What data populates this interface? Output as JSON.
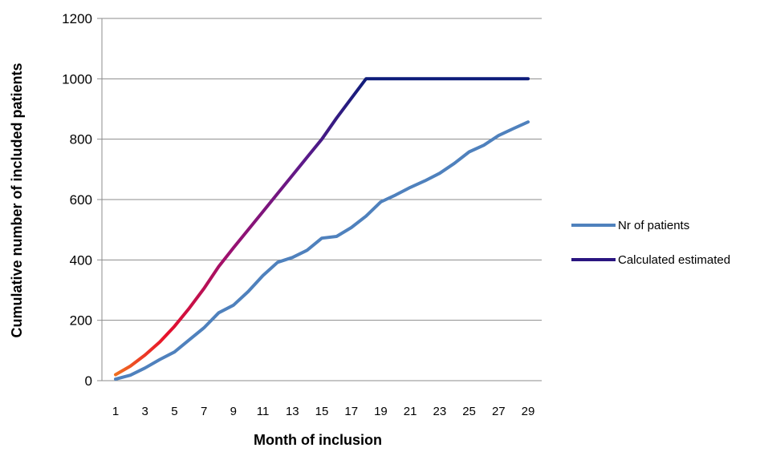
{
  "chart_data": {
    "type": "line",
    "xlabel": "Month of inclusion",
    "ylabel": "Cumulative number of included patients",
    "ylim": [
      0,
      1200
    ],
    "yticks": [
      0,
      200,
      400,
      600,
      800,
      1000,
      1200
    ],
    "xlim": [
      1,
      29
    ],
    "xticks": [
      1,
      3,
      5,
      7,
      9,
      11,
      13,
      15,
      17,
      19,
      21,
      23,
      25,
      27,
      29
    ],
    "grid": "horizontal",
    "legend_position": "right",
    "series": [
      {
        "name": "Nr of patients",
        "color": "#4F81BD",
        "x": [
          1,
          2,
          3,
          4,
          5,
          6,
          7,
          8,
          9,
          10,
          11,
          12,
          13,
          14,
          15,
          16,
          17,
          18,
          19,
          20,
          21,
          22,
          23,
          24,
          25,
          26,
          27,
          28,
          29
        ],
        "values": [
          5,
          18,
          42,
          70,
          95,
          135,
          175,
          225,
          250,
          295,
          348,
          392,
          408,
          432,
          472,
          478,
          507,
          545,
          592,
          615,
          640,
          662,
          687,
          720,
          758,
          780,
          812,
          835,
          857
        ]
      },
      {
        "name": "Calculated estimated",
        "color_gradient": [
          "#F07020",
          "#E8102A",
          "#9B1070",
          "#5C1A8A",
          "#0D1C7A"
        ],
        "x": [
          1,
          2,
          3,
          4,
          5,
          6,
          7,
          8,
          9,
          10,
          11,
          12,
          13,
          14,
          15,
          16,
          17,
          18,
          19,
          20,
          21,
          22,
          23,
          24,
          25,
          26,
          27,
          28,
          29
        ],
        "values": [
          20,
          48,
          85,
          128,
          180,
          240,
          305,
          378,
          440,
          500,
          560,
          620,
          680,
          740,
          800,
          870,
          935,
          1000,
          1000,
          1000,
          1000,
          1000,
          1000,
          1000,
          1000,
          1000,
          1000,
          1000,
          1000
        ]
      }
    ]
  }
}
